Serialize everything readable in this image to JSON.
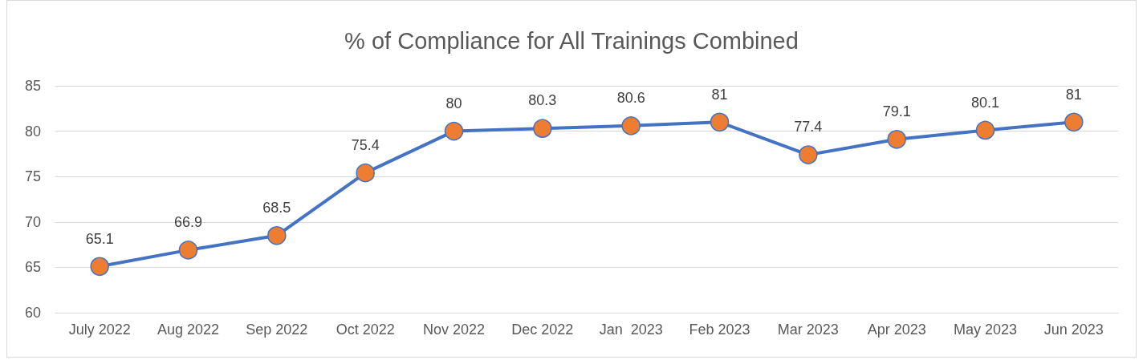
{
  "chart_data": {
    "type": "line",
    "title": "% of Compliance for All Trainings Combined",
    "categories": [
      "July 2022",
      "Aug 2022",
      "Sep 2022",
      "Oct 2022",
      "Nov 2022",
      "Dec 2022",
      "Jan  2023",
      "Feb 2023",
      "Mar 2023",
      "Apr 2023",
      "May 2023",
      "Jun 2023"
    ],
    "series": [
      {
        "color": "#4472c4",
        "colors": [
          "#ed7d31",
          "#ed7d31",
          "#ed7d31",
          "#ed7d31",
          "#ed7d31",
          "#ed7d31",
          "#ed7d31",
          "#ed7d31",
          "#ed7d31",
          "#ed7d31",
          "#ed7d31",
          "#ed7d31"
        ],
        "values": [
          65.1,
          66.9,
          68.5,
          75.4,
          80,
          80.3,
          80.6,
          81,
          77.4,
          79.1,
          80.1,
          81
        ]
      }
    ],
    "ylim": [
      60,
      85
    ],
    "yticks": [
      60,
      65,
      70,
      75,
      80,
      85
    ],
    "grid": "y",
    "marker": "circle",
    "line_style": "solid",
    "data_labels": true
  }
}
